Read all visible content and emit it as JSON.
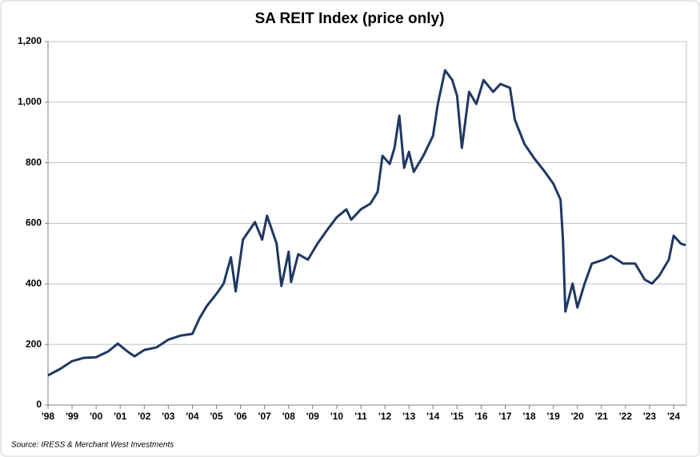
{
  "chart_data": {
    "type": "line",
    "title": "SA REIT Index (price only)",
    "source": "Source: IRESS & Merchant West Investments",
    "x": [
      1998.0,
      1998.5,
      1999.0,
      1999.5,
      2000.0,
      2000.5,
      2000.9,
      2001.3,
      2001.6,
      2002.0,
      2002.5,
      2003.0,
      2003.5,
      2004.0,
      2004.3,
      2004.6,
      2005.0,
      2005.3,
      2005.6,
      2005.8,
      2006.1,
      2006.6,
      2006.9,
      2007.1,
      2007.5,
      2007.7,
      2008.0,
      2008.1,
      2008.4,
      2008.8,
      2009.2,
      2009.6,
      2010.0,
      2010.4,
      2010.6,
      2011.0,
      2011.4,
      2011.7,
      2011.9,
      2012.2,
      2012.4,
      2012.6,
      2012.8,
      2013.0,
      2013.2,
      2013.6,
      2014.0,
      2014.2,
      2014.5,
      2014.8,
      2015.0,
      2015.2,
      2015.5,
      2015.8,
      2016.1,
      2016.5,
      2016.8,
      2017.2,
      2017.4,
      2017.8,
      2018.2,
      2018.6,
      2019.0,
      2019.3,
      2019.4,
      2019.5,
      2019.8,
      2020.0,
      2020.3,
      2020.6,
      2021.1,
      2021.4,
      2021.9,
      2022.4,
      2022.8,
      2023.1,
      2023.4,
      2023.8,
      2024.0,
      2024.3,
      2024.5
    ],
    "series": [
      {
        "name": "SA REIT Index",
        "color": "#1f3864",
        "values": [
          98,
          119,
          145,
          156,
          158,
          177,
          203,
          177,
          161,
          182,
          190,
          216,
          229,
          235,
          287,
          327,
          367,
          401,
          488,
          375,
          546,
          604,
          546,
          625,
          533,
          393,
          506,
          406,
          498,
          480,
          533,
          578,
          620,
          646,
          612,
          646,
          665,
          704,
          823,
          796,
          849,
          955,
          783,
          836,
          770,
          823,
          889,
          994,
          1105,
          1073,
          1021,
          849,
          1034,
          994,
          1073,
          1034,
          1060,
          1047,
          942,
          862,
          815,
          775,
          731,
          678,
          546,
          309,
          401,
          322,
          401,
          467,
          480,
          493,
          467,
          467,
          414,
          401,
          427,
          480,
          559,
          533,
          528
        ]
      }
    ],
    "xlim": [
      1998,
      2024.53
    ],
    "xticks": [
      {
        "value": 1998,
        "label": "'98"
      },
      {
        "value": 1999,
        "label": "'99"
      },
      {
        "value": 2000,
        "label": "'00"
      },
      {
        "value": 2001,
        "label": "'01"
      },
      {
        "value": 2002,
        "label": "'02"
      },
      {
        "value": 2003,
        "label": "'03"
      },
      {
        "value": 2004,
        "label": "'04"
      },
      {
        "value": 2005,
        "label": "'05"
      },
      {
        "value": 2006,
        "label": "'06"
      },
      {
        "value": 2007,
        "label": "'07"
      },
      {
        "value": 2008,
        "label": "'08"
      },
      {
        "value": 2009,
        "label": "'09"
      },
      {
        "value": 2010,
        "label": "'10"
      },
      {
        "value": 2011,
        "label": "'11"
      },
      {
        "value": 2012,
        "label": "'12"
      },
      {
        "value": 2013,
        "label": "'13"
      },
      {
        "value": 2014,
        "label": "'14"
      },
      {
        "value": 2015,
        "label": "'15"
      },
      {
        "value": 2016,
        "label": "'16"
      },
      {
        "value": 2017,
        "label": "'17"
      },
      {
        "value": 2018,
        "label": "'18"
      },
      {
        "value": 2019,
        "label": "'19"
      },
      {
        "value": 2020,
        "label": "'20"
      },
      {
        "value": 2021,
        "label": "'21"
      },
      {
        "value": 2022,
        "label": "'22"
      },
      {
        "value": 2023,
        "label": "'23"
      },
      {
        "value": 2024,
        "label": "'24"
      }
    ],
    "ylim": [
      0,
      1200
    ],
    "yticks": [
      0,
      200,
      400,
      600,
      800,
      {
        "value": 1000,
        "label": "1,000"
      },
      {
        "value": 1200,
        "label": "1,200"
      }
    ],
    "grid": true
  }
}
